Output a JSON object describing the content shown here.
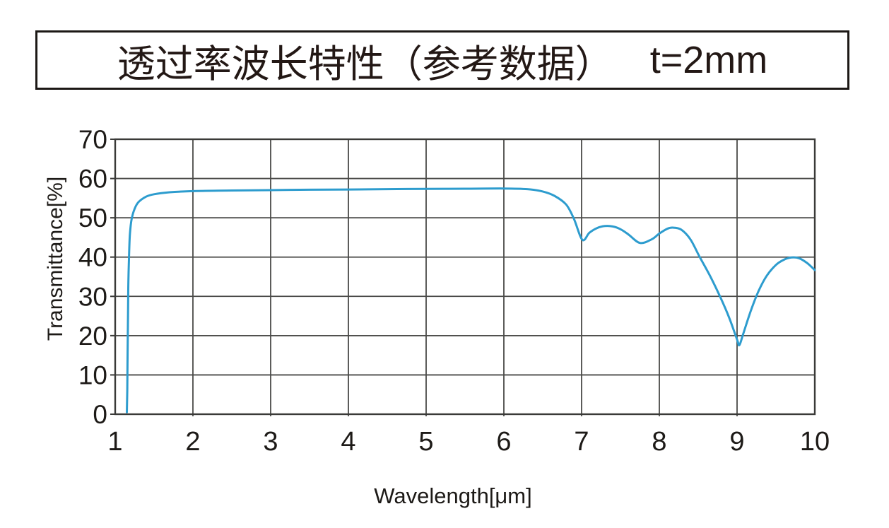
{
  "title": {
    "main": "透过率波长特性（参考数据）",
    "thickness": "t=2mm"
  },
  "chart_data": {
    "type": "line",
    "title": "透过率波长特性（参考数据） t=2mm",
    "xlabel": "Wavelength[μm]",
    "ylabel": "Transmittance[%]",
    "xlim": [
      1,
      10
    ],
    "ylim": [
      0,
      70
    ],
    "x_ticks": [
      1,
      2,
      3,
      4,
      5,
      6,
      7,
      8,
      9,
      10
    ],
    "y_ticks": [
      0,
      10,
      20,
      30,
      40,
      50,
      60,
      70
    ],
    "grid": true,
    "legend_position": "none",
    "series": [
      {
        "name": "transmittance",
        "color": "#2D9CCE",
        "points": [
          [
            1.15,
            0.5
          ],
          [
            1.155,
            6
          ],
          [
            1.16,
            16
          ],
          [
            1.165,
            26
          ],
          [
            1.17,
            34
          ],
          [
            1.18,
            41.5
          ],
          [
            1.19,
            46
          ],
          [
            1.21,
            49.5
          ],
          [
            1.25,
            52.3
          ],
          [
            1.3,
            54
          ],
          [
            1.4,
            55.4
          ],
          [
            1.5,
            56
          ],
          [
            1.7,
            56.5
          ],
          [
            2,
            56.8
          ],
          [
            2.5,
            56.95
          ],
          [
            3,
            57.05
          ],
          [
            3.5,
            57.15
          ],
          [
            4,
            57.2
          ],
          [
            4.5,
            57.3
          ],
          [
            5,
            57.35
          ],
          [
            5.5,
            57.4
          ],
          [
            6,
            57.45
          ],
          [
            6.3,
            57.3
          ],
          [
            6.5,
            56.7
          ],
          [
            6.65,
            55.6
          ],
          [
            6.8,
            53.4
          ],
          [
            6.9,
            49.8
          ],
          [
            7.01,
            44.4
          ],
          [
            7.1,
            46.2
          ],
          [
            7.2,
            47.4
          ],
          [
            7.3,
            47.9
          ],
          [
            7.4,
            47.8
          ],
          [
            7.5,
            47.1
          ],
          [
            7.6,
            45.8
          ],
          [
            7.75,
            43.6
          ],
          [
            7.9,
            44.5
          ],
          [
            8,
            46
          ],
          [
            8.1,
            47.2
          ],
          [
            8.17,
            47.5
          ],
          [
            8.28,
            47
          ],
          [
            8.4,
            44.5
          ],
          [
            8.52,
            40
          ],
          [
            8.65,
            35.3
          ],
          [
            8.78,
            30
          ],
          [
            8.9,
            24.5
          ],
          [
            9,
            19
          ],
          [
            9.03,
            17.6
          ],
          [
            9.08,
            20.5
          ],
          [
            9.18,
            26.5
          ],
          [
            9.28,
            31.5
          ],
          [
            9.38,
            35.2
          ],
          [
            9.5,
            38
          ],
          [
            9.6,
            39.3
          ],
          [
            9.7,
            39.9
          ],
          [
            9.8,
            39.7
          ],
          [
            9.9,
            38.5
          ],
          [
            10,
            36.7
          ]
        ]
      }
    ]
  },
  "colors": {
    "curve": "#2D9CCE",
    "grid": "#4a4a48",
    "frame": "#3a3a38",
    "text": "#1d1a17",
    "title_border": "#1c1815",
    "background": "#ffffff"
  }
}
